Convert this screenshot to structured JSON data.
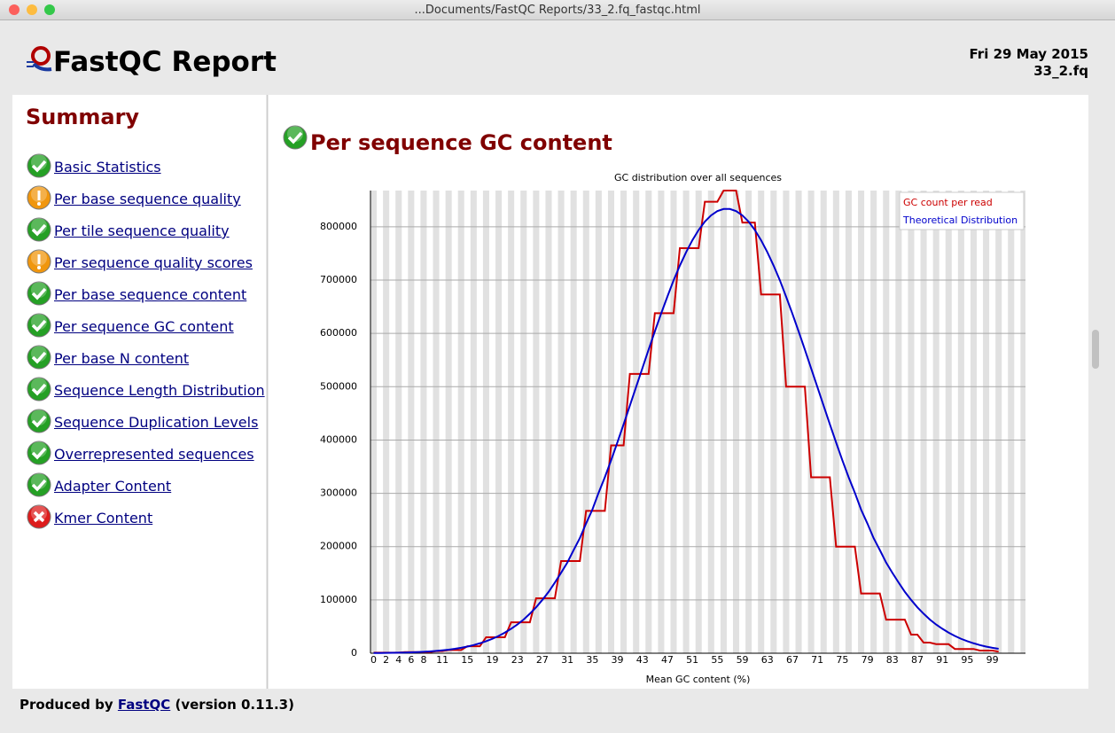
{
  "window": {
    "title": "...Documents/FastQC Reports/33_2.fq_fastqc.html"
  },
  "header": {
    "title": "FastQC Report",
    "date": "Fri 29 May 2015",
    "file": "33_2.fq"
  },
  "summary": {
    "title": "Summary",
    "items": [
      {
        "label": "Basic Statistics",
        "status": "pass"
      },
      {
        "label": "Per base sequence quality",
        "status": "warn"
      },
      {
        "label": "Per tile sequence quality",
        "status": "pass"
      },
      {
        "label": "Per sequence quality scores",
        "status": "warn"
      },
      {
        "label": "Per base sequence content",
        "status": "pass"
      },
      {
        "label": "Per sequence GC content",
        "status": "pass"
      },
      {
        "label": "Per base N content",
        "status": "pass"
      },
      {
        "label": "Sequence Length Distribution",
        "status": "pass"
      },
      {
        "label": "Sequence Duplication Levels",
        "status": "pass"
      },
      {
        "label": "Overrepresented sequences",
        "status": "pass"
      },
      {
        "label": "Adapter Content",
        "status": "pass"
      },
      {
        "label": "Kmer Content",
        "status": "fail"
      }
    ]
  },
  "section": {
    "title": "Per sequence GC content",
    "status": "pass"
  },
  "chart_data": {
    "type": "line",
    "title": "GC distribution over all sequences",
    "x_label": "Mean GC content (%)",
    "x": [
      0,
      1,
      2,
      3,
      4,
      5,
      6,
      7,
      8,
      9,
      10,
      11,
      12,
      13,
      14,
      15,
      16,
      17,
      18,
      19,
      20,
      21,
      22,
      23,
      24,
      25,
      26,
      27,
      28,
      29,
      30,
      31,
      32,
      33,
      34,
      35,
      36,
      37,
      38,
      39,
      40,
      41,
      42,
      43,
      44,
      45,
      46,
      47,
      48,
      49,
      50,
      51,
      52,
      53,
      54,
      55,
      56,
      57,
      58,
      59,
      60,
      61,
      62,
      63,
      64,
      65,
      66,
      67,
      68,
      69,
      70,
      71,
      72,
      73,
      74,
      75,
      76,
      77,
      78,
      79,
      80,
      81,
      82,
      83,
      84,
      85,
      86,
      87,
      88,
      89,
      90,
      91,
      92,
      93,
      94,
      95,
      96,
      97,
      98,
      99,
      100
    ],
    "series": [
      {
        "name": "GC count per read",
        "color": "#cc0000",
        "values": [
          1000,
          1000,
          1000,
          1000,
          1000,
          2000,
          2000,
          2000,
          2000,
          2000,
          4000,
          4000,
          6000,
          6000,
          6000,
          13000,
          13000,
          13000,
          30000,
          30000,
          30000,
          30000,
          58000,
          58000,
          58000,
          58000,
          103000,
          103000,
          103000,
          103000,
          173000,
          173000,
          173000,
          173000,
          267000,
          267000,
          267000,
          267000,
          390000,
          390000,
          390000,
          524000,
          524000,
          524000,
          524000,
          638000,
          638000,
          638000,
          638000,
          760000,
          760000,
          760000,
          760000,
          847000,
          847000,
          847000,
          868000,
          868000,
          868000,
          808000,
          808000,
          808000,
          673000,
          673000,
          673000,
          673000,
          500000,
          500000,
          500000,
          500000,
          330000,
          330000,
          330000,
          330000,
          200000,
          200000,
          200000,
          200000,
          112000,
          112000,
          112000,
          112000,
          63000,
          63000,
          63000,
          63000,
          35000,
          35000,
          20000,
          20000,
          17000,
          17000,
          17000,
          8000,
          8000,
          8000,
          8000,
          5000,
          5000,
          5000,
          3000
        ]
      },
      {
        "name": "Theoretical Distribution",
        "color": "#0000cc",
        "values": [
          345,
          456,
          597,
          775,
          1003,
          1292,
          1659,
          2110,
          2677,
          3410,
          4290,
          5350,
          6660,
          8300,
          10260,
          12510,
          15260,
          18680,
          22520,
          27020,
          32360,
          38700,
          45870,
          53880,
          63220,
          74140,
          86150,
          100080,
          115100,
          132600,
          150950,
          170140,
          193490,
          216010,
          243530,
          269380,
          301070,
          330260,
          361960,
          395320,
          429510,
          464540,
          499570,
          534590,
          569620,
          603820,
          637180,
          668870,
          699730,
          727250,
          752270,
          774790,
          793970,
          809810,
          821490,
          829410,
          833500,
          833500,
          829410,
          821490,
          809810,
          793970,
          774790,
          752270,
          727250,
          699730,
          668870,
          637180,
          603820,
          569620,
          534590,
          499570,
          464540,
          429510,
          395320,
          361960,
          330260,
          301070,
          269380,
          243530,
          216010,
          193490,
          170140,
          150950,
          132600,
          115100,
          100080,
          86150,
          74140,
          63220,
          53880,
          45870,
          38700,
          32360,
          27020,
          22520,
          18680,
          15260,
          12510,
          10260,
          8300
        ]
      }
    ],
    "xlim": [
      -0.5,
      104.3
    ],
    "xticks": [
      0,
      2,
      4,
      6,
      8,
      11,
      15,
      19,
      23,
      27,
      31,
      35,
      39,
      43,
      47,
      51,
      55,
      59,
      63,
      67,
      71,
      75,
      79,
      83,
      87,
      91,
      95,
      99
    ],
    "ylim": [
      0,
      868000
    ],
    "yticks": [
      0,
      100000,
      200000,
      300000,
      400000,
      500000,
      600000,
      700000,
      800000
    ],
    "grid": true,
    "legend": "upper right"
  },
  "footer": {
    "prefix": "Produced by",
    "link": "FastQC",
    "suffix": "(version 0.11.3)"
  }
}
